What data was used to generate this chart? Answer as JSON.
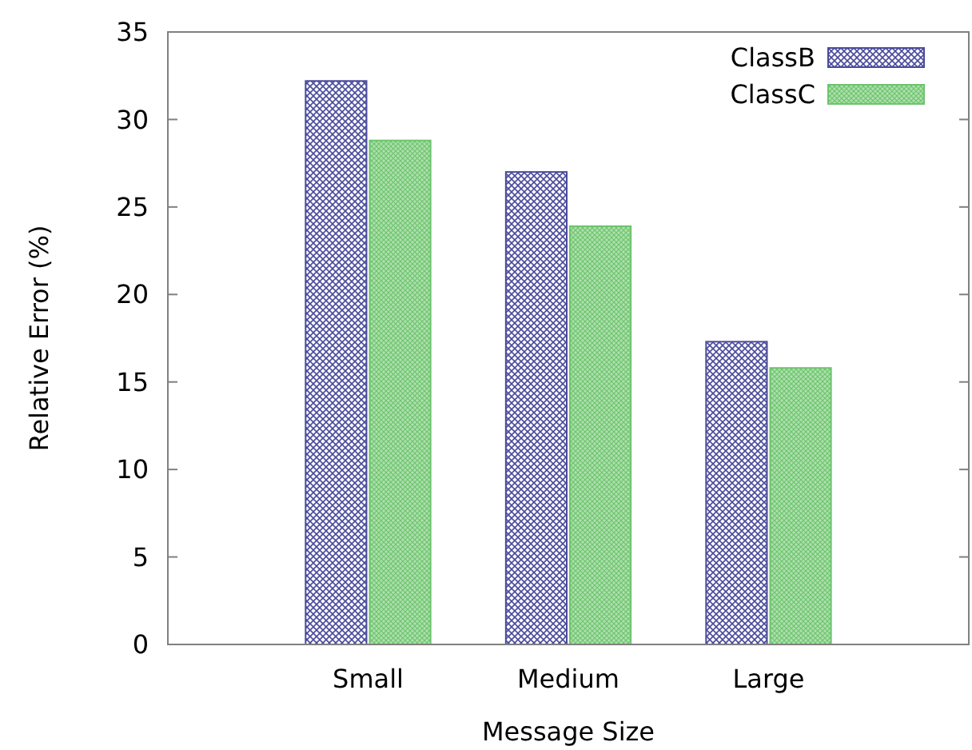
{
  "chart_data": {
    "type": "bar",
    "xlabel": "Message Size",
    "ylabel": "Relative Error (%)",
    "categories": [
      "Small",
      "Medium",
      "Large"
    ],
    "series": [
      {
        "name": "ClassB",
        "color": "#4a4a9c",
        "values": [
          32.2,
          27.0,
          17.3
        ]
      },
      {
        "name": "ClassC",
        "color": "#6cc46c",
        "values": [
          28.8,
          23.9,
          15.8
        ]
      }
    ],
    "ylim": [
      0,
      35
    ],
    "yticks": [
      0,
      5,
      10,
      15,
      20,
      25,
      30,
      35
    ],
    "grid": false,
    "legend": "top right"
  }
}
